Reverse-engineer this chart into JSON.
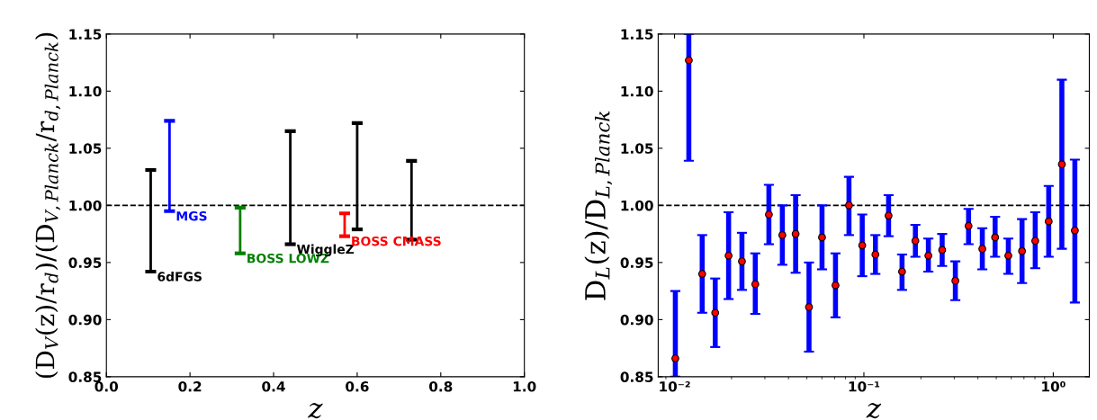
{
  "chart_data": [
    {
      "type": "bar",
      "xlabel": "z",
      "ylabel": "(D$_{V}$(z)/r$_{d}$)/(D$_{V,Planck}$/r$_{d,Planck}$)",
      "series": [
        {
          "name": "6dFGS",
          "color": "#000000",
          "x": [
            0.106
          ],
          "base": [
            0.942
          ],
          "values": [
            0.089
          ]
        },
        {
          "name": "MGS",
          "color": "#0000ff",
          "x": [
            0.151
          ],
          "base": [
            0.995
          ],
          "values": [
            0.079
          ]
        },
        {
          "name": "BOSS LOWZ",
          "color": "#008000",
          "x": [
            0.32
          ],
          "base": [
            0.958
          ],
          "values": [
            0.04
          ]
        },
        {
          "name": "WiggleZ",
          "color": "#000000",
          "x": [
            0.44,
            0.6,
            0.73
          ],
          "base": [
            0.966,
            0.979,
            0.97
          ],
          "values": [
            0.099,
            0.093,
            0.069
          ]
        },
        {
          "name": "BOSS CMASS",
          "color": "#ff0000",
          "x": [
            0.57
          ],
          "base": [
            0.973
          ],
          "values": [
            0.02
          ]
        }
      ],
      "ref_lines": [
        {
          "axis": "y",
          "value": 1.0,
          "color": "#000000",
          "line_style": "dashed"
        }
      ],
      "xlim": [
        0,
        1
      ],
      "ylim": [
        0.85,
        1.15
      ],
      "xticks": [
        {
          "value": 0,
          "label": "0.0"
        },
        0.2,
        0.4,
        0.6,
        0.8,
        {
          "value": 1,
          "label": "1.0"
        }
      ],
      "yticks": [
        0.85,
        {
          "value": 0.9,
          "label": "0.90"
        },
        0.95,
        {
          "value": 1.0,
          "label": "1.00"
        },
        1.05,
        {
          "value": 1.1,
          "label": "1.10"
        },
        1.15
      ],
      "grid": false,
      "legend": "center"
    },
    {
      "type": "scatter",
      "xlabel": "z",
      "ylabel": "D$_{L}$(z)/D$_{L,Planck}$",
      "marker": "circle",
      "log": "x",
      "series": [
        {
          "color": "#ff0000",
          "x": [
            0.0101,
            0.0119,
            0.014,
            0.0164,
            0.0193,
            0.0227,
            0.0267,
            0.0315,
            0.0371,
            0.0436,
            0.0513,
            0.0601,
            0.0708,
            0.0834,
            0.098,
            0.115,
            0.135,
            0.159,
            0.187,
            0.219,
            0.259,
            0.304,
            0.357,
            0.422,
            0.493,
            0.579,
            0.684,
            0.803,
            0.946,
            1.11,
            1.3
          ],
          "values": [
            0.866,
            1.127,
            0.94,
            0.906,
            0.956,
            0.951,
            0.931,
            0.992,
            0.974,
            0.975,
            0.911,
            0.972,
            0.93,
            1.0,
            0.965,
            0.957,
            0.991,
            0.942,
            0.969,
            0.956,
            0.961,
            0.934,
            0.982,
            0.962,
            0.972,
            0.956,
            0.96,
            0.969,
            0.986,
            1.036,
            0.978
          ],
          "errors": [
            [
              0.85,
              0.925
            ],
            [
              1.039,
              1.15
            ],
            [
              0.906,
              0.974
            ],
            [
              0.876,
              0.936
            ],
            [
              0.918,
              0.994
            ],
            [
              0.926,
              0.976
            ],
            [
              0.905,
              0.958
            ],
            [
              0.966,
              1.018
            ],
            [
              0.948,
              1.0
            ],
            [
              0.941,
              1.009
            ],
            [
              0.872,
              0.95
            ],
            [
              0.944,
              1.0
            ],
            [
              0.902,
              0.958
            ],
            [
              0.974,
              1.025
            ],
            [
              0.938,
              0.992
            ],
            [
              0.94,
              0.974
            ],
            [
              0.973,
              1.009
            ],
            [
              0.926,
              0.957
            ],
            [
              0.955,
              0.983
            ],
            [
              0.942,
              0.971
            ],
            [
              0.947,
              0.975
            ],
            [
              0.917,
              0.951
            ],
            [
              0.966,
              0.997
            ],
            [
              0.944,
              0.98
            ],
            [
              0.955,
              0.99
            ],
            [
              0.94,
              0.971
            ],
            [
              0.932,
              0.988
            ],
            [
              0.945,
              0.994
            ],
            [
              0.955,
              1.017
            ],
            [
              0.962,
              1.11
            ],
            [
              0.915,
              1.04
            ]
          ]
        }
      ],
      "ref_lines": [
        {
          "axis": "y",
          "value": 1.0,
          "color": "#000000",
          "line_style": "dashed"
        }
      ],
      "xlim": [
        0.0082,
        1.55
      ],
      "ylim": [
        0.85,
        1.15
      ],
      "xticks": [
        {
          "value": 0.01,
          "label": "10⁻²"
        },
        {
          "value": 0.1,
          "label": "10⁻¹"
        },
        {
          "value": 1,
          "label": "10⁰"
        }
      ],
      "yticks": [
        0.85,
        {
          "value": 0.9,
          "label": "0.90"
        },
        0.95,
        {
          "value": 1.0,
          "label": "1.00"
        },
        1.05,
        {
          "value": 1.1,
          "label": "1.10"
        },
        1.15
      ],
      "grid": false,
      "legend": false
    }
  ]
}
